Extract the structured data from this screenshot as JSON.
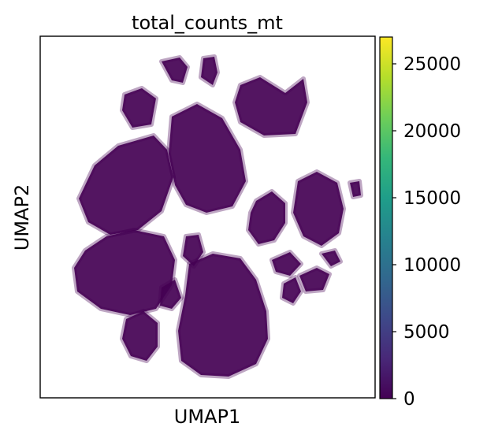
{
  "chart_data": {
    "type": "scatter",
    "title": "total_counts_mt",
    "xlabel": "UMAP1",
    "ylabel": "UMAP2",
    "x_ticks": [],
    "y_ticks": [],
    "color_variable": "total_counts_mt",
    "colormap": "viridis",
    "colorbar": {
      "range": [
        0,
        27000
      ],
      "ticks": [
        0,
        5000,
        10000,
        15000,
        20000,
        25000
      ],
      "tick_labels": [
        "0",
        "5000",
        "10000",
        "15000",
        "20000",
        "25000"
      ],
      "colors": [
        "#440154",
        "#482878",
        "#3e4989",
        "#31688e",
        "#26828e",
        "#1f9e89",
        "#35b779",
        "#6ece58",
        "#b5de2b",
        "#fde725"
      ]
    },
    "point_color": "#440154",
    "grid": false,
    "legend": "none"
  }
}
